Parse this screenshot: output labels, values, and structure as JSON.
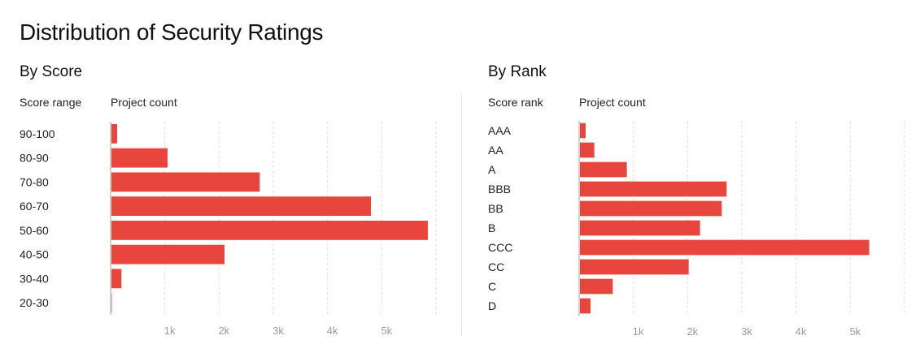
{
  "title": "Distribution of Security Ratings",
  "colors": {
    "bar": "#e8453c",
    "grid": "#dddddd",
    "axis": "#cfcfcf"
  },
  "chart_data": [
    {
      "type": "bar",
      "orientation": "horizontal",
      "subtitle": "By Score",
      "category_header": "Score range",
      "value_header": "Project count",
      "categories": [
        "90-100",
        "80-90",
        "70-80",
        "60-70",
        "50-60",
        "40-50",
        "30-40",
        "20-30"
      ],
      "values": [
        120,
        1050,
        2750,
        4800,
        5850,
        2100,
        200,
        20
      ],
      "xticks": [
        1000,
        2000,
        3000,
        4000,
        5000
      ],
      "xtick_labels": [
        "1k",
        "2k",
        "3k",
        "4k",
        "5k"
      ],
      "xlim": [
        0,
        6000
      ],
      "grid": true
    },
    {
      "type": "bar",
      "orientation": "horizontal",
      "subtitle": "By Rank",
      "category_header": "Score rank",
      "value_header": "Project count",
      "categories": [
        "AAA",
        "AA",
        "A",
        "BBB",
        "BB",
        "B",
        "CCC",
        "CC",
        "C",
        "D"
      ],
      "values": [
        120,
        280,
        880,
        2720,
        2630,
        2230,
        5350,
        2020,
        620,
        210
      ],
      "xticks": [
        1000,
        2000,
        3000,
        4000,
        5000
      ],
      "xtick_labels": [
        "1k",
        "2k",
        "3k",
        "4k",
        "5k"
      ],
      "xlim": [
        0,
        6000
      ],
      "grid": true
    }
  ]
}
